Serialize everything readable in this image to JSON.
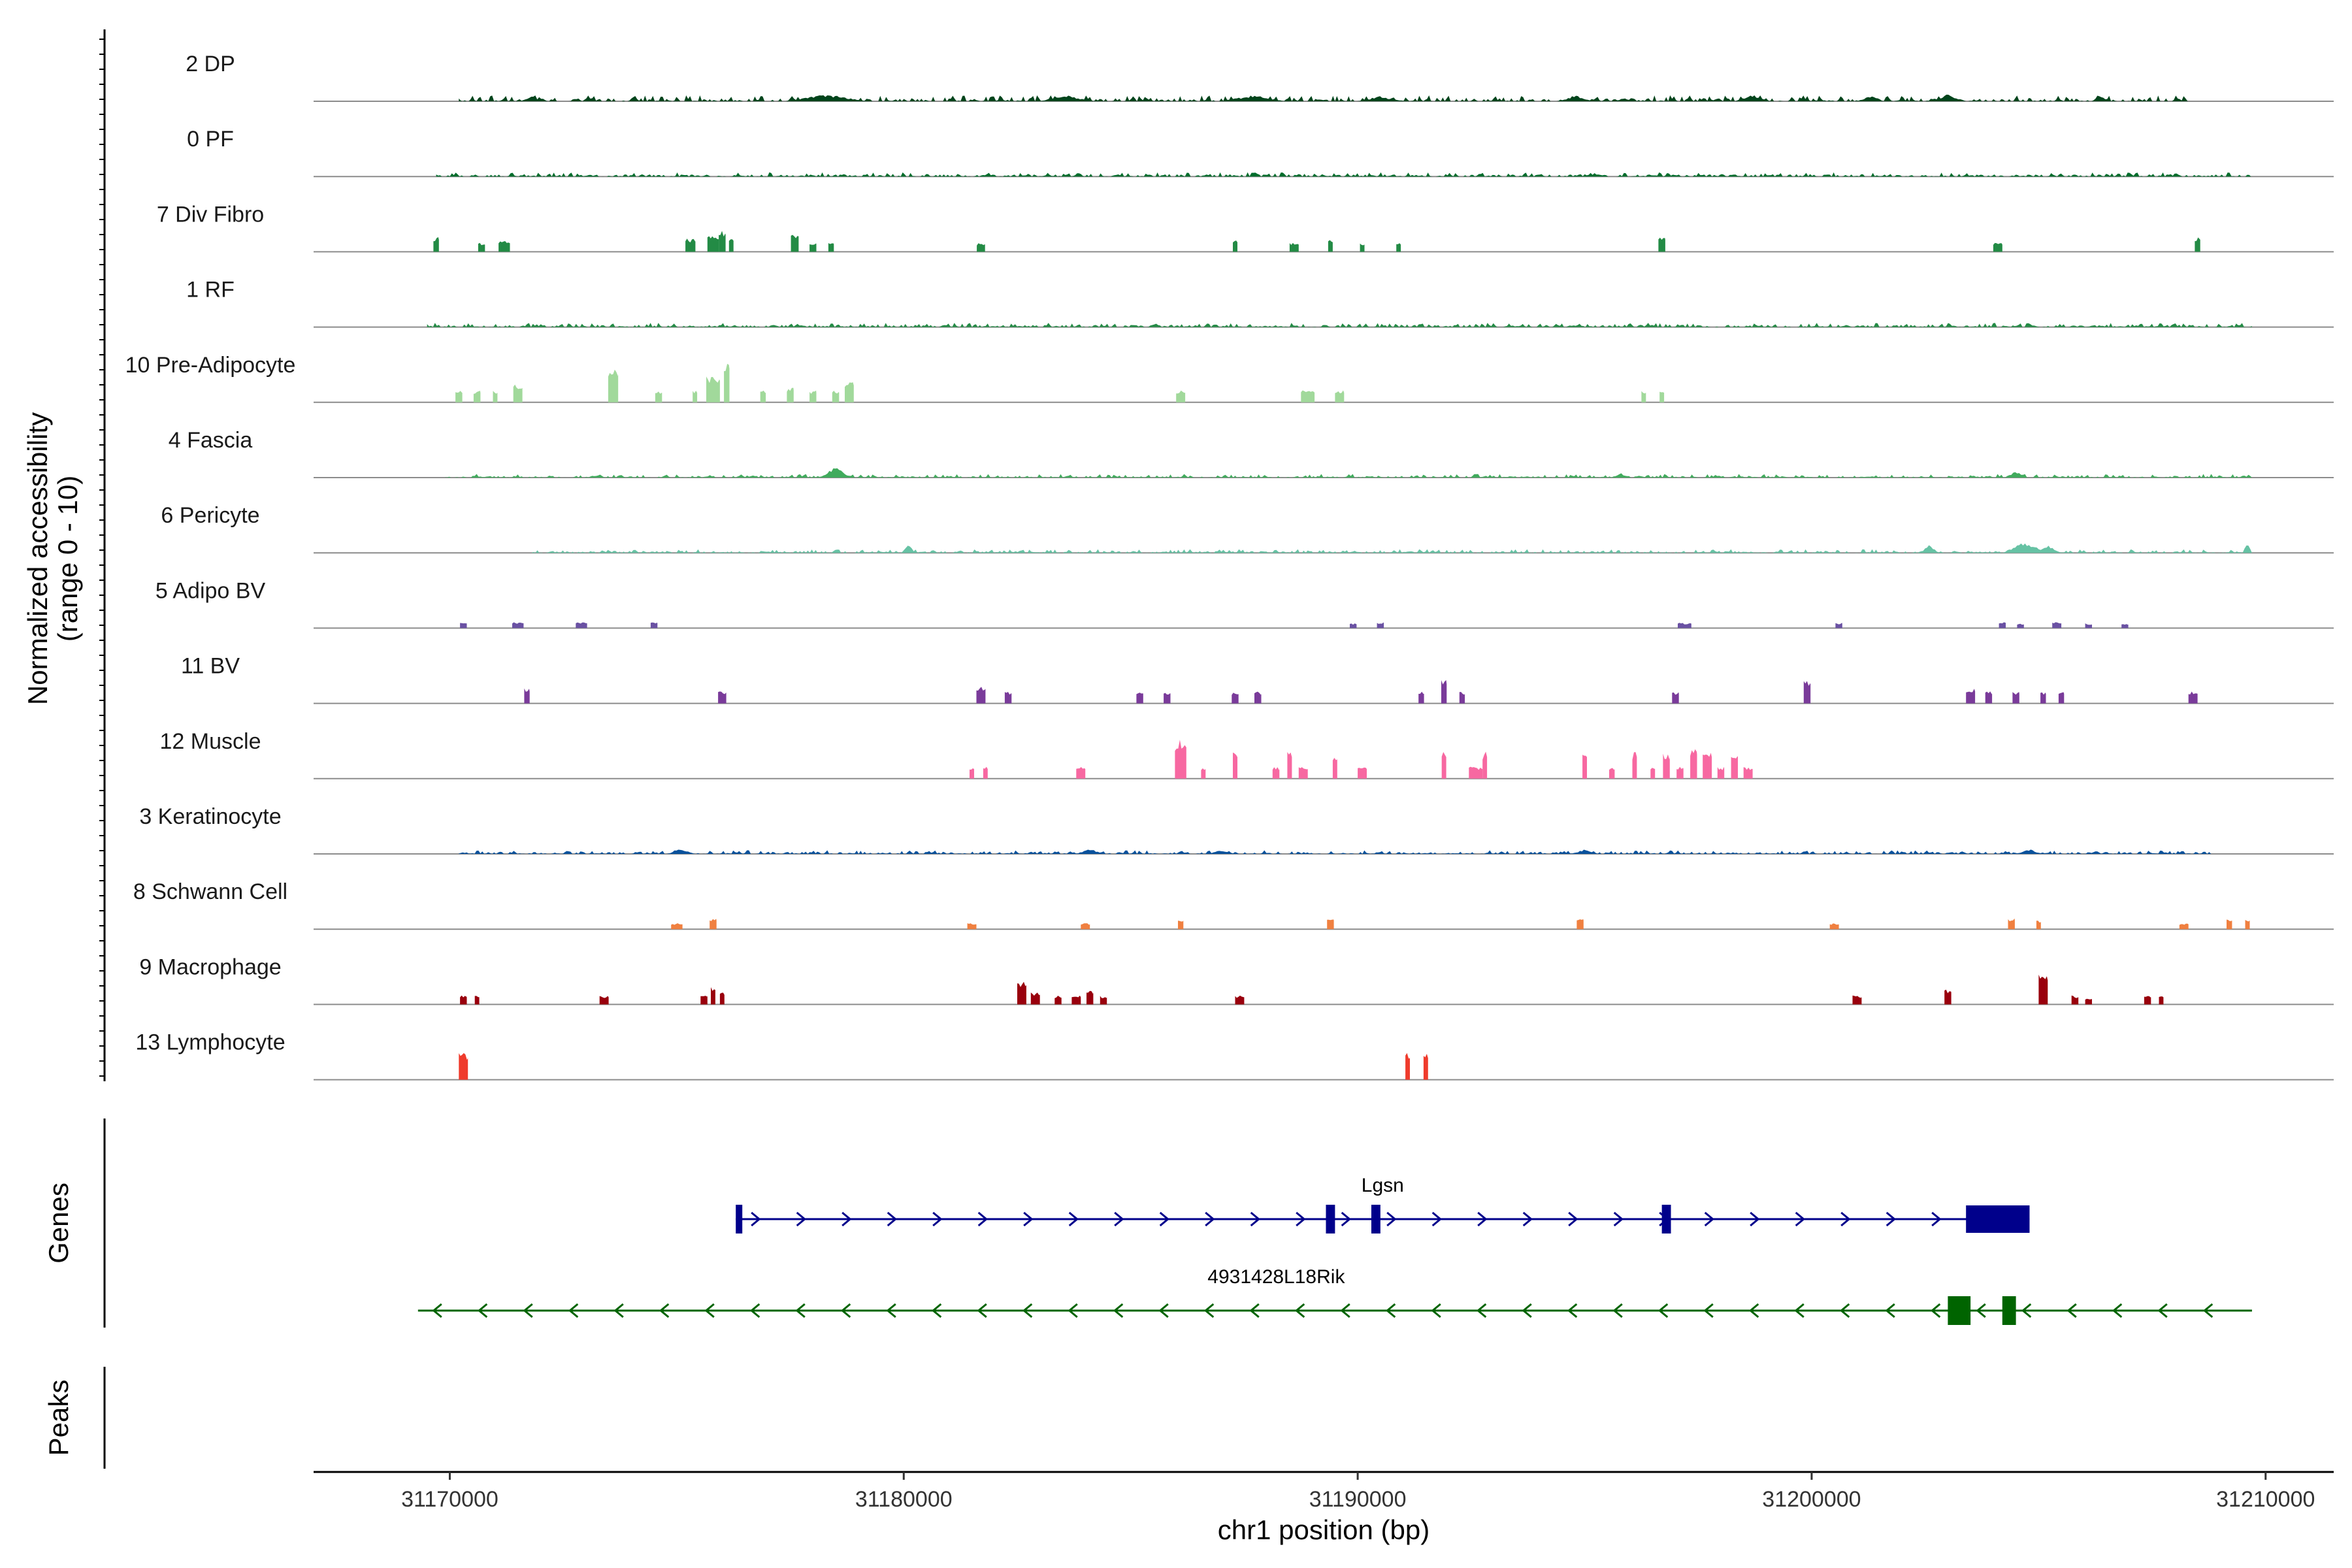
{
  "chart_data": {
    "type": "coverage",
    "ylabel_line1": "Normalized accessibility",
    "ylabel_line2": "(range 0 - 10)",
    "xlabel": "chr1 position (bp)",
    "xlim": [
      31167000,
      31211500
    ],
    "xticks": [
      {
        "value": 31170000,
        "label": "31170000"
      },
      {
        "value": 31180000,
        "label": "31180000"
      },
      {
        "value": 31190000,
        "label": "31190000"
      },
      {
        "value": 31200000,
        "label": "31200000"
      },
      {
        "value": 31210000,
        "label": "31210000"
      }
    ],
    "ylim": [
      0,
      10
    ],
    "tracks": [
      {
        "name": "2 DP",
        "color": "#00441b",
        "style": "dense",
        "start": 31170200,
        "end": 31208300,
        "baseline": 0.5,
        "peaks": [
          [
            31171800,
            0.9,
            250
          ],
          [
            31178300,
            1.2,
            900
          ],
          [
            31183600,
            1.0,
            600
          ],
          [
            31187700,
            1.1,
            700
          ],
          [
            31190500,
            0.9,
            500
          ],
          [
            31194800,
            1.0,
            400
          ],
          [
            31198700,
            1.1,
            400
          ],
          [
            31201300,
            0.9,
            300
          ],
          [
            31203000,
            1.2,
            400
          ]
        ]
      },
      {
        "name": "0 PF",
        "color": "#006d2c",
        "style": "dense",
        "start": 31169700,
        "end": 31209700,
        "baseline": 0.35,
        "peaks": []
      },
      {
        "name": "7 Div Fibro",
        "color": "#238b45",
        "style": "sparse",
        "peaks": [
          [
            31169700,
            2.5,
            120
          ],
          [
            31170700,
            1.5,
            150
          ],
          [
            31171200,
            1.8,
            250
          ],
          [
            31175300,
            2.2,
            220
          ],
          [
            31175800,
            2.6,
            250
          ],
          [
            31176000,
            3.5,
            150
          ],
          [
            31176200,
            2.3,
            100
          ],
          [
            31177600,
            3.2,
            170
          ],
          [
            31178000,
            1.6,
            150
          ],
          [
            31178400,
            1.6,
            120
          ],
          [
            31181700,
            1.5,
            180
          ],
          [
            31187300,
            2.0,
            100
          ],
          [
            31188600,
            1.5,
            200
          ],
          [
            31189400,
            2.0,
            100
          ],
          [
            31190100,
            1.5,
            100
          ],
          [
            31190900,
            1.5,
            100
          ],
          [
            31196700,
            2.5,
            150
          ],
          [
            31204100,
            1.5,
            200
          ],
          [
            31208500,
            2.5,
            120
          ]
        ]
      },
      {
        "name": "1 RF",
        "color": "#238b45",
        "style": "dense",
        "start": 31169500,
        "end": 31209700,
        "baseline": 0.35,
        "peaks": []
      },
      {
        "name": "10 Pre-Adipocyte",
        "color": "#a1d99b",
        "style": "sparse",
        "peaks": [
          [
            31170200,
            2.0,
            150
          ],
          [
            31170600,
            2.0,
            150
          ],
          [
            31171000,
            2.0,
            100
          ],
          [
            31171500,
            3.0,
            200
          ],
          [
            31173600,
            6.0,
            220
          ],
          [
            31174600,
            2.0,
            150
          ],
          [
            31175400,
            2.0,
            100
          ],
          [
            31175800,
            4.5,
            300
          ],
          [
            31176100,
            7.0,
            120
          ],
          [
            31176900,
            2.0,
            120
          ],
          [
            31177500,
            2.5,
            150
          ],
          [
            31178000,
            2.0,
            150
          ],
          [
            31178500,
            2.0,
            150
          ],
          [
            31178800,
            3.5,
            200
          ],
          [
            31186100,
            2.0,
            200
          ],
          [
            31188900,
            2.0,
            300
          ],
          [
            31189600,
            2.0,
            200
          ],
          [
            31196300,
            2.0,
            100
          ],
          [
            31196700,
            2.0,
            100
          ]
        ]
      },
      {
        "name": "4 Fascia",
        "color": "#41ab5d",
        "style": "dense",
        "start": 31169900,
        "end": 31209700,
        "baseline": 0.3,
        "peaks": [
          [
            31178500,
            2.0,
            350
          ],
          [
            31204500,
            1.2,
            250
          ],
          [
            31195800,
            0.8,
            200
          ]
        ]
      },
      {
        "name": "6 Pericyte",
        "color": "#66c2a4",
        "style": "dense",
        "start": 31171800,
        "end": 31209700,
        "baseline": 0.3,
        "peaks": [
          [
            31180100,
            1.6,
            150
          ],
          [
            31202600,
            1.5,
            200
          ],
          [
            31204700,
            2.0,
            500
          ],
          [
            31205200,
            1.5,
            300
          ],
          [
            31209600,
            2.2,
            100
          ]
        ]
      },
      {
        "name": "5 Adipo BV",
        "color": "#6a51a3",
        "style": "sparse",
        "peaks": [
          [
            31170300,
            1.0,
            150
          ],
          [
            31171500,
            1.0,
            250
          ],
          [
            31172900,
            1.0,
            250
          ],
          [
            31174500,
            1.0,
            150
          ],
          [
            31189900,
            0.8,
            150
          ],
          [
            31190500,
            1.0,
            150
          ],
          [
            31197200,
            0.9,
            300
          ],
          [
            31200600,
            0.9,
            150
          ],
          [
            31204200,
            1.0,
            150
          ],
          [
            31204600,
            0.8,
            150
          ],
          [
            31205400,
            1.0,
            200
          ],
          [
            31206100,
            0.8,
            150
          ],
          [
            31206900,
            0.8,
            150
          ]
        ]
      },
      {
        "name": "11 BV",
        "color": "#7a3b9a",
        "style": "sparse",
        "peaks": [
          [
            31171700,
            2.5,
            120
          ],
          [
            31176000,
            2.0,
            180
          ],
          [
            31181700,
            3.0,
            200
          ],
          [
            31182300,
            2.0,
            150
          ],
          [
            31185200,
            2.0,
            150
          ],
          [
            31185800,
            2.0,
            150
          ],
          [
            31187300,
            2.0,
            150
          ],
          [
            31187800,
            2.0,
            150
          ],
          [
            31191400,
            2.0,
            120
          ],
          [
            31191900,
            4.0,
            120
          ],
          [
            31192300,
            2.0,
            120
          ],
          [
            31197000,
            2.0,
            150
          ],
          [
            31199900,
            4.0,
            150
          ],
          [
            31203500,
            2.5,
            200
          ],
          [
            31203900,
            2.0,
            150
          ],
          [
            31204500,
            2.0,
            150
          ],
          [
            31205100,
            2.0,
            120
          ],
          [
            31205500,
            2.0,
            120
          ],
          [
            31208400,
            2.0,
            200
          ]
        ]
      },
      {
        "name": "12 Muscle",
        "color": "#f768a1",
        "style": "sparse",
        "peaks": [
          [
            31181500,
            2.0,
            100
          ],
          [
            31181800,
            2.0,
            100
          ],
          [
            31183900,
            2.0,
            200
          ],
          [
            31186100,
            6.5,
            250
          ],
          [
            31186600,
            2.0,
            100
          ],
          [
            31187300,
            4.5,
            100
          ],
          [
            31188200,
            2.0,
            150
          ],
          [
            31188500,
            4.5,
            100
          ],
          [
            31188800,
            2.0,
            200
          ],
          [
            31189500,
            4.0,
            100
          ],
          [
            31190100,
            2.0,
            200
          ],
          [
            31191900,
            4.5,
            100
          ],
          [
            31192600,
            2.0,
            300
          ],
          [
            31192800,
            4.5,
            100
          ],
          [
            31195000,
            4.5,
            100
          ],
          [
            31195600,
            2.0,
            120
          ],
          [
            31196100,
            4.5,
            100
          ],
          [
            31196500,
            2.0,
            100
          ],
          [
            31196800,
            4.5,
            150
          ],
          [
            31197100,
            2.0,
            150
          ],
          [
            31197400,
            5.0,
            150
          ],
          [
            31197700,
            4.5,
            200
          ],
          [
            31198000,
            2.0,
            150
          ],
          [
            31198300,
            4.5,
            150
          ],
          [
            31198600,
            2.0,
            200
          ]
        ]
      },
      {
        "name": "3 Keratinocyte",
        "color": "#08519c",
        "style": "dense",
        "start": 31170200,
        "end": 31208800,
        "baseline": 0.3,
        "peaks": [
          [
            31175100,
            0.9,
            300
          ],
          [
            31184100,
            0.9,
            300
          ],
          [
            31187000,
            0.7,
            300
          ],
          [
            31195000,
            0.8,
            300
          ],
          [
            31204800,
            0.8,
            300
          ]
        ]
      },
      {
        "name": "8 Schwann Cell",
        "color": "#f08040",
        "style": "sparse",
        "peaks": [
          [
            31175000,
            1.0,
            250
          ],
          [
            31175800,
            1.8,
            150
          ],
          [
            31181500,
            1.0,
            200
          ],
          [
            31184000,
            1.0,
            200
          ],
          [
            31186100,
            1.8,
            120
          ],
          [
            31189400,
            1.8,
            150
          ],
          [
            31194900,
            1.8,
            150
          ],
          [
            31200500,
            1.0,
            200
          ],
          [
            31204400,
            1.8,
            150
          ],
          [
            31205000,
            1.5,
            100
          ],
          [
            31208200,
            1.0,
            200
          ],
          [
            31209200,
            1.8,
            120
          ],
          [
            31209600,
            1.8,
            100
          ]
        ]
      },
      {
        "name": "9 Macrophage",
        "color": "#99000d",
        "style": "sparse",
        "peaks": [
          [
            31170300,
            1.5,
            150
          ],
          [
            31170600,
            1.5,
            100
          ],
          [
            31173400,
            1.5,
            200
          ],
          [
            31175600,
            1.8,
            150
          ],
          [
            31175800,
            3.0,
            100
          ],
          [
            31176000,
            2.0,
            100
          ],
          [
            31182600,
            4.0,
            200
          ],
          [
            31182900,
            2.0,
            200
          ],
          [
            31183400,
            1.5,
            150
          ],
          [
            31183800,
            1.5,
            200
          ],
          [
            31184100,
            2.5,
            150
          ],
          [
            31184400,
            1.5,
            150
          ],
          [
            31187400,
            1.5,
            200
          ],
          [
            31201000,
            1.5,
            200
          ],
          [
            31203000,
            2.5,
            150
          ],
          [
            31205100,
            5.0,
            200
          ],
          [
            31205800,
            1.5,
            150
          ],
          [
            31206100,
            1.0,
            150
          ],
          [
            31207400,
            1.5,
            150
          ],
          [
            31207700,
            1.5,
            100
          ]
        ]
      },
      {
        "name": "13 Lymphocyte",
        "color": "#ef3b2c",
        "style": "sparse",
        "peaks": [
          [
            31170300,
            4.5,
            200
          ],
          [
            31191100,
            4.5,
            100
          ],
          [
            31191500,
            4.5,
            100
          ]
        ]
      }
    ],
    "genes": [
      {
        "name": "Lgsn",
        "strand": "+",
        "color": "#00008b",
        "start": 31176300,
        "end": 31204800,
        "exons": [
          [
            31176300,
            31176400
          ],
          [
            31189300,
            31189500
          ],
          [
            31190300,
            31190500
          ],
          [
            31196700,
            31196900
          ],
          [
            31203400,
            31204800
          ]
        ]
      },
      {
        "name": "4931428L18Rik",
        "strand": "-",
        "color": "#006400",
        "start": 31169300,
        "end": 31209700,
        "exons": [
          [
            31203000,
            31203500
          ],
          [
            31204200,
            31204500
          ]
        ]
      }
    ],
    "panels": {
      "genes_label": "Genes",
      "peaks_label": "Peaks"
    }
  }
}
